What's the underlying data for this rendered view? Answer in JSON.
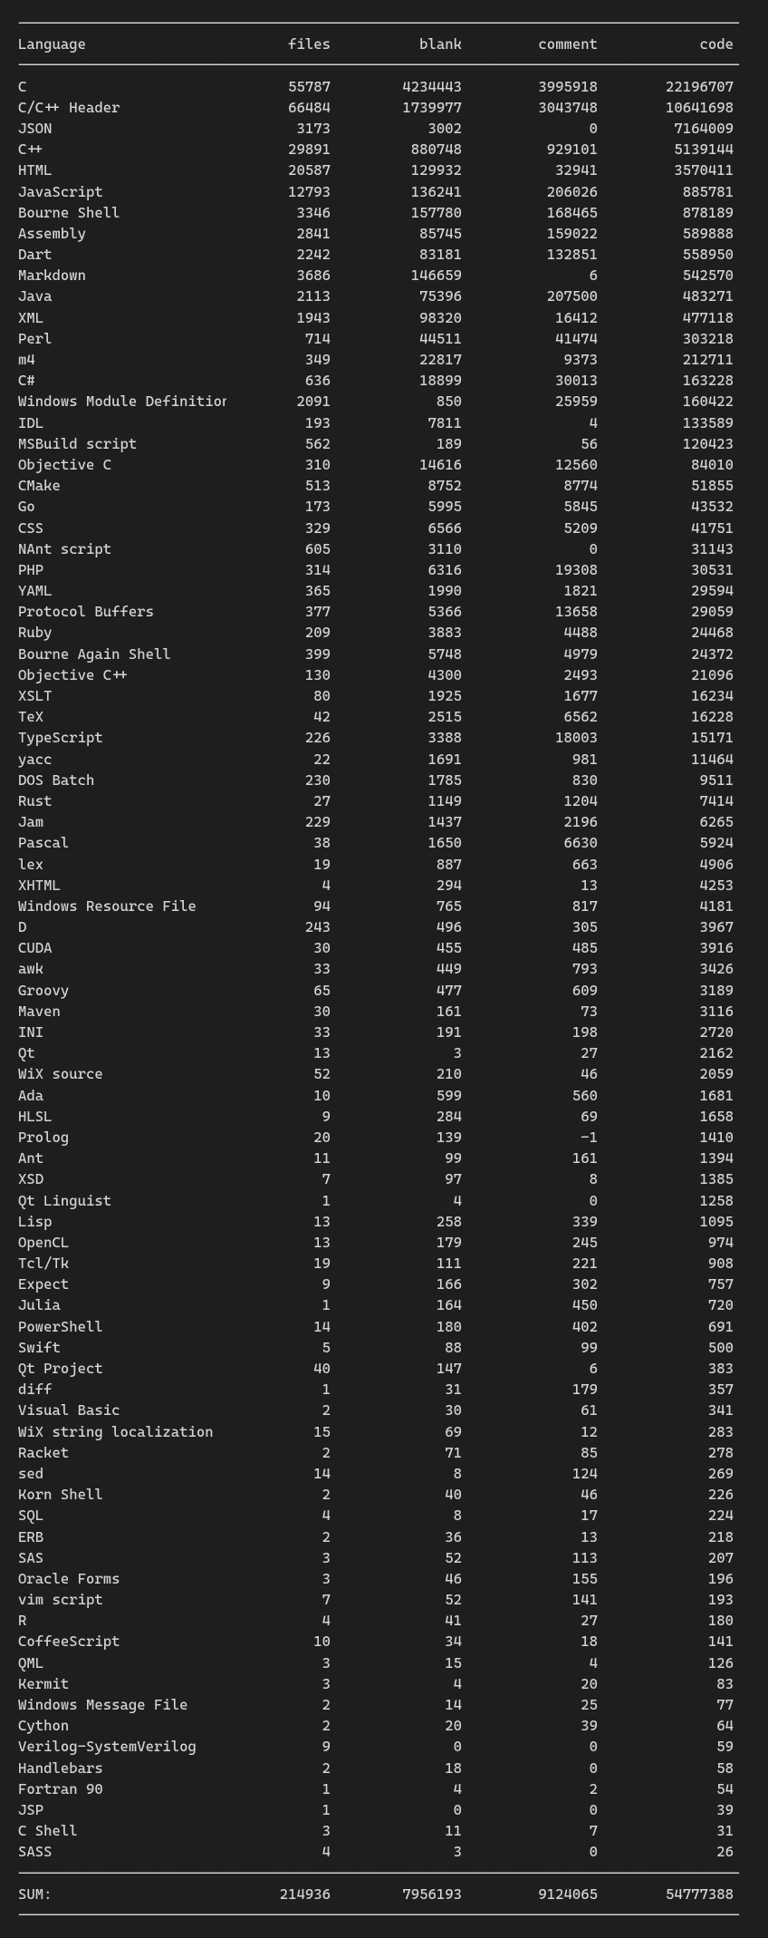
{
  "divider_char": "-",
  "headers": {
    "language": "Language",
    "files": "files",
    "blank": "blank",
    "comment": "comment",
    "code": "code"
  },
  "colors": {
    "background": "#1e1e1e",
    "text": "#d4d4d4"
  },
  "rows": [
    {
      "language": "C",
      "files": "55787",
      "blank": "4234443",
      "comment": "3995918",
      "code": "22196707"
    },
    {
      "language": "C/C++ Header",
      "files": "66484",
      "blank": "1739977",
      "comment": "3043748",
      "code": "10641698"
    },
    {
      "language": "JSON",
      "files": "3173",
      "blank": "3002",
      "comment": "0",
      "code": "7164009"
    },
    {
      "language": "C++",
      "files": "29891",
      "blank": "880748",
      "comment": "929101",
      "code": "5139144"
    },
    {
      "language": "HTML",
      "files": "20587",
      "blank": "129932",
      "comment": "32941",
      "code": "3570411"
    },
    {
      "language": "JavaScript",
      "files": "12793",
      "blank": "136241",
      "comment": "206026",
      "code": "885781"
    },
    {
      "language": "Bourne Shell",
      "files": "3346",
      "blank": "157780",
      "comment": "168465",
      "code": "878189"
    },
    {
      "language": "Assembly",
      "files": "2841",
      "blank": "85745",
      "comment": "159022",
      "code": "589888"
    },
    {
      "language": "Dart",
      "files": "2242",
      "blank": "83181",
      "comment": "132851",
      "code": "558950"
    },
    {
      "language": "Markdown",
      "files": "3686",
      "blank": "146659",
      "comment": "6",
      "code": "542570"
    },
    {
      "language": "Java",
      "files": "2113",
      "blank": "75396",
      "comment": "207500",
      "code": "483271"
    },
    {
      "language": "XML",
      "files": "1943",
      "blank": "98320",
      "comment": "16412",
      "code": "477118"
    },
    {
      "language": "Perl",
      "files": "714",
      "blank": "44511",
      "comment": "41474",
      "code": "303218"
    },
    {
      "language": "m4",
      "files": "349",
      "blank": "22817",
      "comment": "9373",
      "code": "212711"
    },
    {
      "language": "C#",
      "files": "636",
      "blank": "18899",
      "comment": "30013",
      "code": "163228"
    },
    {
      "language": "Windows Module Definition",
      "files": "2091",
      "blank": "850",
      "comment": "25959",
      "code": "160422"
    },
    {
      "language": "IDL",
      "files": "193",
      "blank": "7811",
      "comment": "4",
      "code": "133589"
    },
    {
      "language": "MSBuild script",
      "files": "562",
      "blank": "189",
      "comment": "56",
      "code": "120423"
    },
    {
      "language": "Objective C",
      "files": "310",
      "blank": "14616",
      "comment": "12560",
      "code": "84010"
    },
    {
      "language": "CMake",
      "files": "513",
      "blank": "8752",
      "comment": "8774",
      "code": "51855"
    },
    {
      "language": "Go",
      "files": "173",
      "blank": "5995",
      "comment": "5845",
      "code": "43532"
    },
    {
      "language": "CSS",
      "files": "329",
      "blank": "6566",
      "comment": "5209",
      "code": "41751"
    },
    {
      "language": "NAnt script",
      "files": "605",
      "blank": "3110",
      "comment": "0",
      "code": "31143"
    },
    {
      "language": "PHP",
      "files": "314",
      "blank": "6316",
      "comment": "19308",
      "code": "30531"
    },
    {
      "language": "YAML",
      "files": "365",
      "blank": "1990",
      "comment": "1821",
      "code": "29594"
    },
    {
      "language": "Protocol Buffers",
      "files": "377",
      "blank": "5366",
      "comment": "13658",
      "code": "29059"
    },
    {
      "language": "Ruby",
      "files": "209",
      "blank": "3883",
      "comment": "4488",
      "code": "24468"
    },
    {
      "language": "Bourne Again Shell",
      "files": "399",
      "blank": "5748",
      "comment": "4979",
      "code": "24372"
    },
    {
      "language": "Objective C++",
      "files": "130",
      "blank": "4300",
      "comment": "2493",
      "code": "21096"
    },
    {
      "language": "XSLT",
      "files": "80",
      "blank": "1925",
      "comment": "1677",
      "code": "16234"
    },
    {
      "language": "TeX",
      "files": "42",
      "blank": "2515",
      "comment": "6562",
      "code": "16228"
    },
    {
      "language": "TypeScript",
      "files": "226",
      "blank": "3388",
      "comment": "18003",
      "code": "15171"
    },
    {
      "language": "yacc",
      "files": "22",
      "blank": "1691",
      "comment": "981",
      "code": "11464"
    },
    {
      "language": "DOS Batch",
      "files": "230",
      "blank": "1785",
      "comment": "830",
      "code": "9511"
    },
    {
      "language": "Rust",
      "files": "27",
      "blank": "1149",
      "comment": "1204",
      "code": "7414"
    },
    {
      "language": "Jam",
      "files": "229",
      "blank": "1437",
      "comment": "2196",
      "code": "6265"
    },
    {
      "language": "Pascal",
      "files": "38",
      "blank": "1650",
      "comment": "6630",
      "code": "5924"
    },
    {
      "language": "lex",
      "files": "19",
      "blank": "887",
      "comment": "663",
      "code": "4906"
    },
    {
      "language": "XHTML",
      "files": "4",
      "blank": "294",
      "comment": "13",
      "code": "4253"
    },
    {
      "language": "Windows Resource File",
      "files": "94",
      "blank": "765",
      "comment": "817",
      "code": "4181"
    },
    {
      "language": "D",
      "files": "243",
      "blank": "496",
      "comment": "305",
      "code": "3967"
    },
    {
      "language": "CUDA",
      "files": "30",
      "blank": "455",
      "comment": "485",
      "code": "3916"
    },
    {
      "language": "awk",
      "files": "33",
      "blank": "449",
      "comment": "793",
      "code": "3426"
    },
    {
      "language": "Groovy",
      "files": "65",
      "blank": "477",
      "comment": "609",
      "code": "3189"
    },
    {
      "language": "Maven",
      "files": "30",
      "blank": "161",
      "comment": "73",
      "code": "3116"
    },
    {
      "language": "INI",
      "files": "33",
      "blank": "191",
      "comment": "198",
      "code": "2720"
    },
    {
      "language": "Qt",
      "files": "13",
      "blank": "3",
      "comment": "27",
      "code": "2162"
    },
    {
      "language": "WiX source",
      "files": "52",
      "blank": "210",
      "comment": "46",
      "code": "2059"
    },
    {
      "language": "Ada",
      "files": "10",
      "blank": "599",
      "comment": "560",
      "code": "1681"
    },
    {
      "language": "HLSL",
      "files": "9",
      "blank": "284",
      "comment": "69",
      "code": "1658"
    },
    {
      "language": "Prolog",
      "files": "20",
      "blank": "139",
      "comment": "-1",
      "code": "1410"
    },
    {
      "language": "Ant",
      "files": "11",
      "blank": "99",
      "comment": "161",
      "code": "1394"
    },
    {
      "language": "XSD",
      "files": "7",
      "blank": "97",
      "comment": "8",
      "code": "1385"
    },
    {
      "language": "Qt Linguist",
      "files": "1",
      "blank": "4",
      "comment": "0",
      "code": "1258"
    },
    {
      "language": "Lisp",
      "files": "13",
      "blank": "258",
      "comment": "339",
      "code": "1095"
    },
    {
      "language": "OpenCL",
      "files": "13",
      "blank": "179",
      "comment": "245",
      "code": "974"
    },
    {
      "language": "Tcl/Tk",
      "files": "19",
      "blank": "111",
      "comment": "221",
      "code": "908"
    },
    {
      "language": "Expect",
      "files": "9",
      "blank": "166",
      "comment": "302",
      "code": "757"
    },
    {
      "language": "Julia",
      "files": "1",
      "blank": "164",
      "comment": "450",
      "code": "720"
    },
    {
      "language": "PowerShell",
      "files": "14",
      "blank": "180",
      "comment": "402",
      "code": "691"
    },
    {
      "language": "Swift",
      "files": "5",
      "blank": "88",
      "comment": "99",
      "code": "500"
    },
    {
      "language": "Qt Project",
      "files": "40",
      "blank": "147",
      "comment": "6",
      "code": "383"
    },
    {
      "language": "diff",
      "files": "1",
      "blank": "31",
      "comment": "179",
      "code": "357"
    },
    {
      "language": "Visual Basic",
      "files": "2",
      "blank": "30",
      "comment": "61",
      "code": "341"
    },
    {
      "language": "WiX string localization",
      "files": "15",
      "blank": "69",
      "comment": "12",
      "code": "283"
    },
    {
      "language": "Racket",
      "files": "2",
      "blank": "71",
      "comment": "85",
      "code": "278"
    },
    {
      "language": "sed",
      "files": "14",
      "blank": "8",
      "comment": "124",
      "code": "269"
    },
    {
      "language": "Korn Shell",
      "files": "2",
      "blank": "40",
      "comment": "46",
      "code": "226"
    },
    {
      "language": "SQL",
      "files": "4",
      "blank": "8",
      "comment": "17",
      "code": "224"
    },
    {
      "language": "ERB",
      "files": "2",
      "blank": "36",
      "comment": "13",
      "code": "218"
    },
    {
      "language": "SAS",
      "files": "3",
      "blank": "52",
      "comment": "113",
      "code": "207"
    },
    {
      "language": "Oracle Forms",
      "files": "3",
      "blank": "46",
      "comment": "155",
      "code": "196"
    },
    {
      "language": "vim script",
      "files": "7",
      "blank": "52",
      "comment": "141",
      "code": "193"
    },
    {
      "language": "R",
      "files": "4",
      "blank": "41",
      "comment": "27",
      "code": "180"
    },
    {
      "language": "CoffeeScript",
      "files": "10",
      "blank": "34",
      "comment": "18",
      "code": "141"
    },
    {
      "language": "QML",
      "files": "3",
      "blank": "15",
      "comment": "4",
      "code": "126"
    },
    {
      "language": "Kermit",
      "files": "3",
      "blank": "4",
      "comment": "20",
      "code": "83"
    },
    {
      "language": "Windows Message File",
      "files": "2",
      "blank": "14",
      "comment": "25",
      "code": "77"
    },
    {
      "language": "Cython",
      "files": "2",
      "blank": "20",
      "comment": "39",
      "code": "64"
    },
    {
      "language": "Verilog-SystemVerilog",
      "files": "9",
      "blank": "0",
      "comment": "0",
      "code": "59"
    },
    {
      "language": "Handlebars",
      "files": "2",
      "blank": "18",
      "comment": "0",
      "code": "58"
    },
    {
      "language": "Fortran 90",
      "files": "1",
      "blank": "4",
      "comment": "2",
      "code": "54"
    },
    {
      "language": "JSP",
      "files": "1",
      "blank": "0",
      "comment": "0",
      "code": "39"
    },
    {
      "language": "C Shell",
      "files": "3",
      "blank": "11",
      "comment": "7",
      "code": "31"
    },
    {
      "language": "SASS",
      "files": "4",
      "blank": "3",
      "comment": "0",
      "code": "26"
    }
  ],
  "sum": {
    "label": "SUM:",
    "files": "214936",
    "blank": "7956193",
    "comment": "9124065",
    "code": "54777388"
  }
}
